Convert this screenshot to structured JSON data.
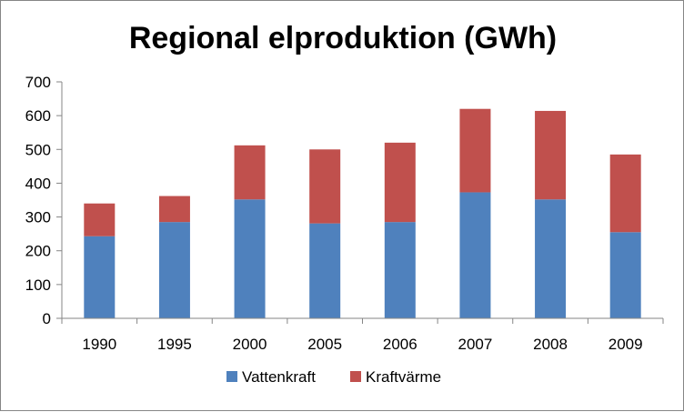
{
  "chart_data": {
    "type": "bar",
    "stacked": true,
    "title": "Regional elproduktion (GWh)",
    "xlabel": "",
    "ylabel": "",
    "categories": [
      "1990",
      "1995",
      "2000",
      "2005",
      "2006",
      "2007",
      "2008",
      "2009"
    ],
    "series": [
      {
        "name": "Vattenkraft",
        "color": "#4f81bd",
        "values": [
          243,
          285,
          352,
          281,
          285,
          373,
          352,
          255
        ]
      },
      {
        "name": "Kraftvärme",
        "color": "#c0504d",
        "values": [
          97,
          77,
          160,
          219,
          235,
          247,
          262,
          230
        ]
      }
    ],
    "ylim": [
      0,
      700
    ],
    "yticks": [
      "0",
      "100",
      "200",
      "300",
      "400",
      "500",
      "600",
      "700"
    ],
    "grid": false,
    "legend_position": "bottom"
  }
}
